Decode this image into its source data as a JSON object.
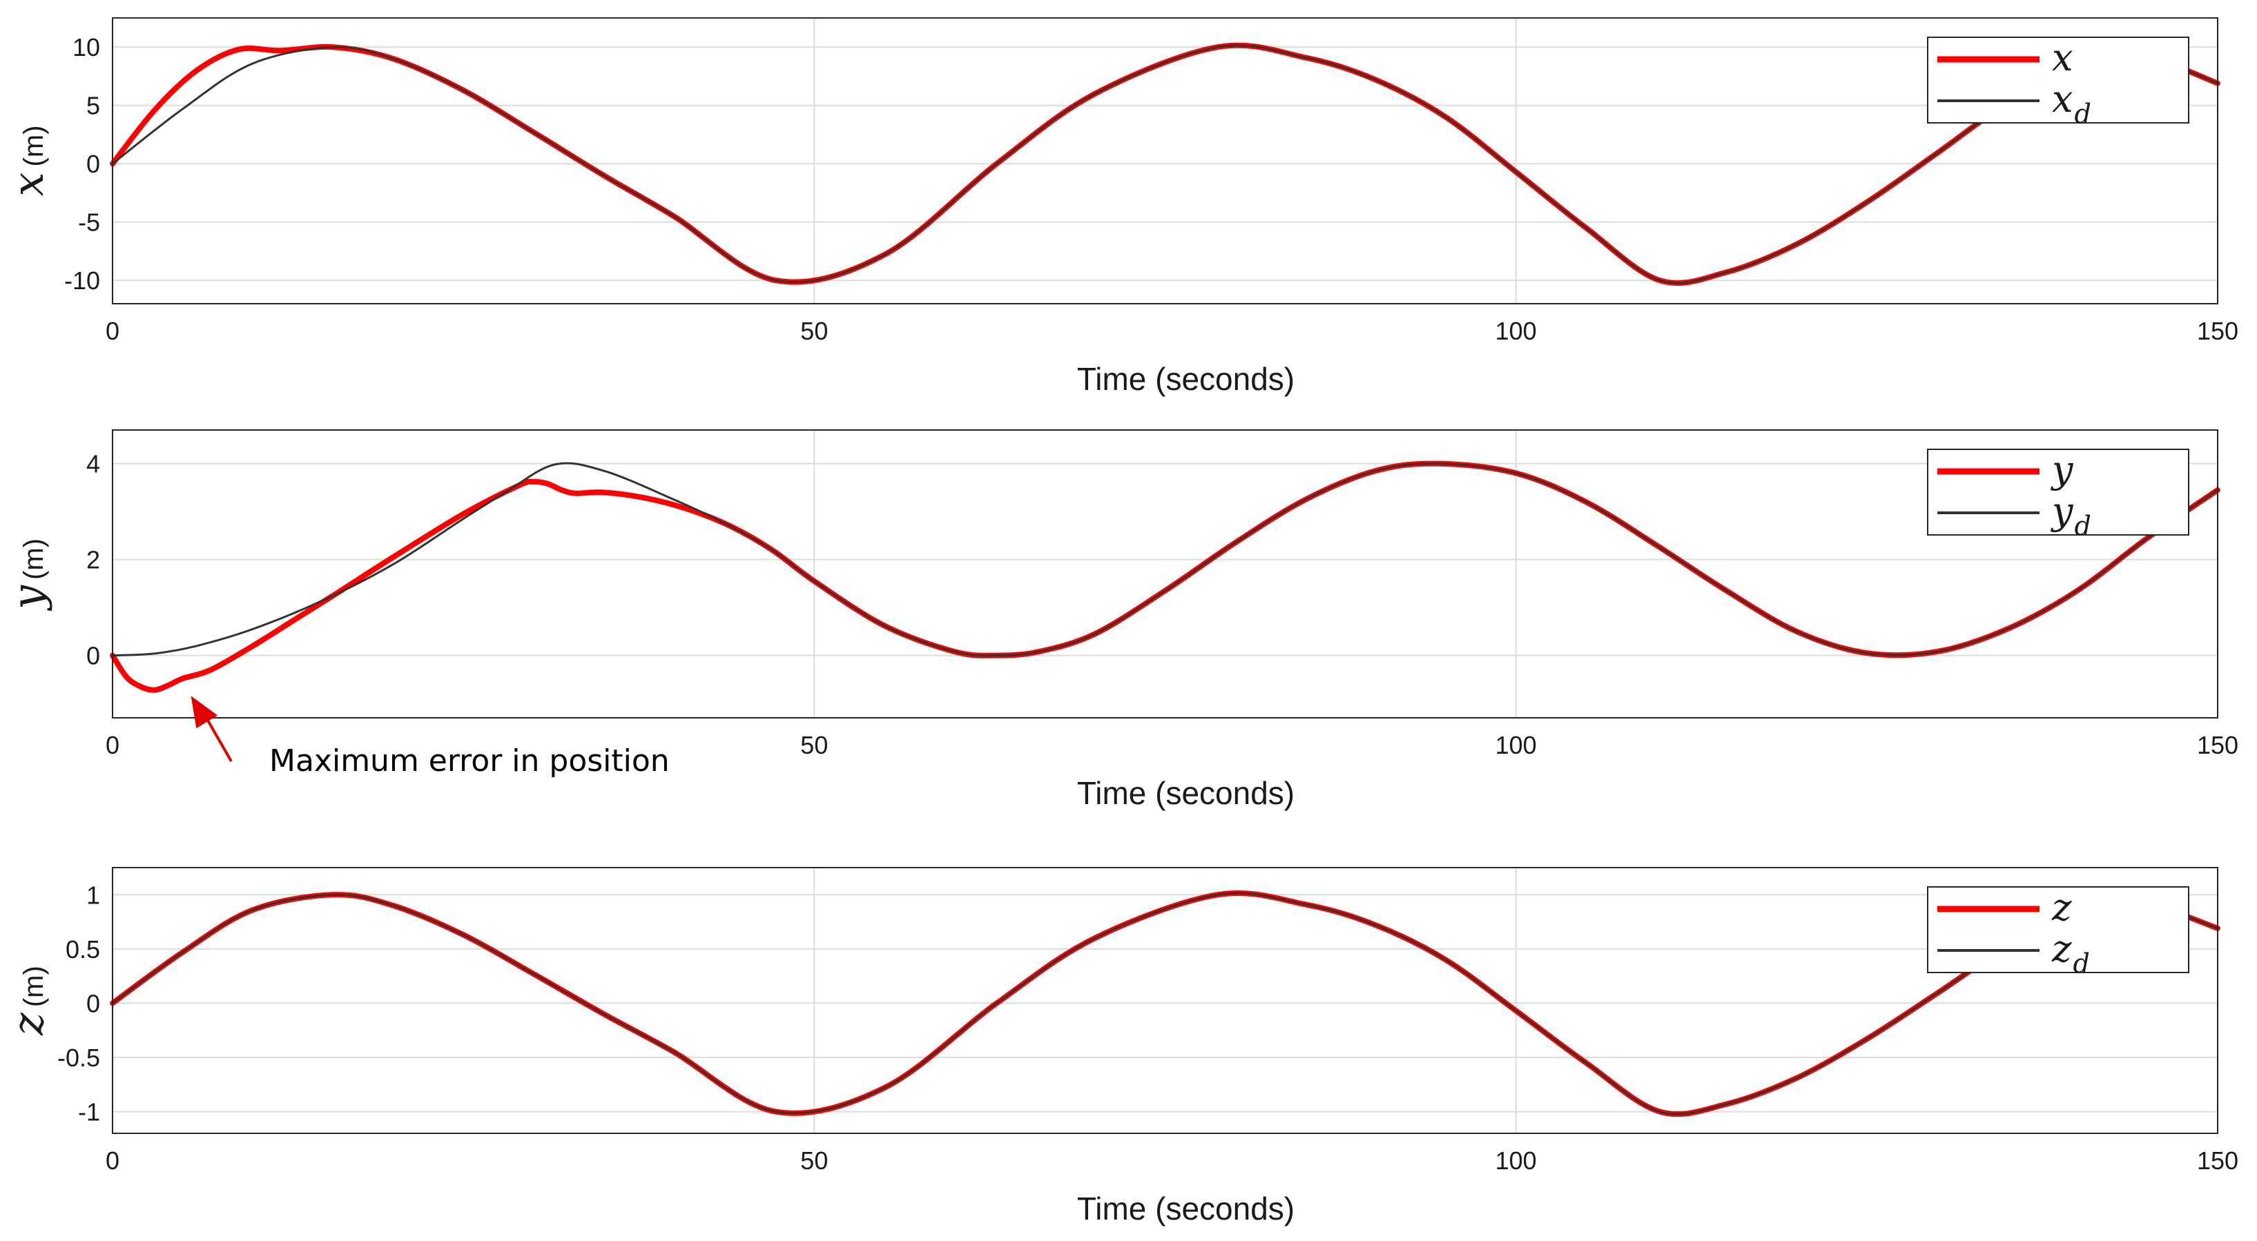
{
  "chart_data": [
    {
      "type": "line",
      "id": "x",
      "ylabel_symbol": "x",
      "ylabel_unit": "(m)",
      "xlabel": "Time (seconds)",
      "xlim": [
        0,
        150
      ],
      "ylim": [
        -12,
        12.5
      ],
      "xticks": [
        0,
        50,
        100,
        150
      ],
      "yticks": [
        -10,
        -5,
        0,
        5,
        10
      ],
      "ytick_labels": [
        "-10",
        "-5",
        "0",
        "5",
        "10"
      ],
      "grid": true,
      "legend_position": "top-right",
      "series": [
        {
          "name": "x",
          "subscript": "",
          "color": "#ff0000",
          "amplitude": 10,
          "offset": 0,
          "period": 63,
          "shape": "sine",
          "x": [
            0,
            3,
            6,
            9,
            12,
            15.75,
            20,
            25,
            30,
            35,
            40,
            47.25,
            55,
            63,
            70,
            78.75,
            85,
            90,
            95,
            100,
            105,
            110.25,
            115,
            120,
            125,
            130,
            135,
            141.75,
            146,
            150
          ],
          "y": [
            0,
            4.6,
            8.0,
            9.8,
            9.7,
            10,
            9.0,
            6.3,
            2.7,
            -1.0,
            -4.5,
            -10,
            -7.8,
            0,
            6.0,
            10,
            9.1,
            7.2,
            4.0,
            -0.7,
            -5.5,
            -10,
            -9.3,
            -6.9,
            -3.3,
            0.9,
            5.2,
            10,
            8.8,
            6.9
          ]
        },
        {
          "name": "x",
          "subscript": "d",
          "color": "#333333",
          "amplitude": 10,
          "offset": 0,
          "period": 63,
          "shape": "sine",
          "x": [
            0,
            5,
            10,
            15.75,
            20,
            25,
            30,
            35,
            40,
            47.25,
            55,
            63,
            70,
            78.75,
            85,
            90,
            95,
            100,
            105,
            110.25,
            115,
            120,
            125,
            130,
            135,
            141.75,
            146,
            150
          ],
          "y": [
            0,
            4.7,
            8.6,
            10,
            9.0,
            6.3,
            2.7,
            -1.0,
            -4.5,
            -10,
            -7.8,
            0,
            6.0,
            10,
            9.1,
            7.2,
            4.0,
            -0.7,
            -5.5,
            -10,
            -9.3,
            -6.9,
            -3.3,
            0.9,
            5.2,
            10,
            8.8,
            6.9
          ]
        }
      ]
    },
    {
      "type": "line",
      "id": "y",
      "ylabel_symbol": "y",
      "ylabel_unit": "(m)",
      "xlabel": "Time (seconds)",
      "xlim": [
        0,
        150
      ],
      "ylim": [
        -1.3,
        4.7
      ],
      "xticks": [
        0,
        50,
        100,
        150
      ],
      "yticks": [
        0,
        2,
        4
      ],
      "ytick_labels": [
        "0",
        "2",
        "4"
      ],
      "grid": true,
      "legend_position": "top-right",
      "annotation": {
        "text": "Maximum error in position",
        "point": [
          5,
          -0.7
        ]
      },
      "series": [
        {
          "name": "y",
          "subscript": "",
          "color": "#ff0000",
          "x": [
            0,
            1,
            2,
            3,
            4,
            5,
            7,
            10,
            13,
            16,
            20,
            25,
            29,
            30,
            31,
            32,
            33,
            35,
            38,
            41,
            44,
            47,
            50,
            55,
            60,
            63,
            66,
            70,
            75,
            80,
            85,
            90,
            94.5,
            100,
            105,
            110,
            115,
            120,
            125,
            130,
            135,
            140,
            145,
            150
          ],
          "y": [
            0,
            -0.45,
            -0.65,
            -0.72,
            -0.62,
            -0.48,
            -0.3,
            0.2,
            0.75,
            1.3,
            2.05,
            2.95,
            3.55,
            3.62,
            3.58,
            3.45,
            3.38,
            3.4,
            3.28,
            3.05,
            2.7,
            2.2,
            1.55,
            0.62,
            0.08,
            0,
            0.08,
            0.45,
            1.35,
            2.35,
            3.25,
            3.85,
            4,
            3.8,
            3.2,
            2.3,
            1.35,
            0.5,
            0.05,
            0.08,
            0.55,
            1.35,
            2.45,
            3.45
          ]
        },
        {
          "name": "y",
          "subscript": "d",
          "color": "#333333",
          "x": [
            0,
            3,
            6,
            10,
            15,
            20,
            25,
            28,
            31.5,
            35,
            40,
            44,
            47,
            50,
            55,
            60,
            63,
            66,
            70,
            75,
            80,
            85,
            90,
            94.5,
            100,
            105,
            110,
            115,
            120,
            125,
            130,
            135,
            140,
            145,
            150
          ],
          "y": [
            0,
            0.04,
            0.2,
            0.55,
            1.15,
            1.9,
            2.85,
            3.4,
            3.98,
            3.85,
            3.25,
            2.7,
            2.2,
            1.55,
            0.62,
            0.08,
            0,
            0.08,
            0.45,
            1.35,
            2.35,
            3.25,
            3.85,
            4,
            3.8,
            3.2,
            2.3,
            1.35,
            0.5,
            0.05,
            0.08,
            0.55,
            1.35,
            2.45,
            3.45
          ]
        }
      ]
    },
    {
      "type": "line",
      "id": "z",
      "ylabel_symbol": "z",
      "ylabel_unit": "(m)",
      "xlabel": "Time (seconds)",
      "xlim": [
        0,
        150
      ],
      "ylim": [
        -1.2,
        1.25
      ],
      "xticks": [
        0,
        50,
        100,
        150
      ],
      "yticks": [
        -1,
        -0.5,
        0,
        0.5,
        1
      ],
      "ytick_labels": [
        "-1",
        "-0.5",
        "0",
        "0.5",
        "1"
      ],
      "grid": true,
      "legend_position": "top-right",
      "series": [
        {
          "name": "z",
          "subscript": "",
          "color": "#ff0000",
          "x": [
            0,
            5,
            10,
            15.75,
            20,
            25,
            30,
            35,
            40,
            47.25,
            55,
            63,
            70,
            78.75,
            85,
            90,
            95,
            100,
            105,
            110.25,
            115,
            120,
            125,
            130,
            135,
            141.75,
            146,
            150
          ],
          "y": [
            0,
            0.47,
            0.86,
            1,
            0.9,
            0.63,
            0.27,
            -0.1,
            -0.45,
            -1,
            -0.78,
            0,
            0.6,
            1,
            0.91,
            0.72,
            0.4,
            -0.07,
            -0.55,
            -1,
            -0.93,
            -0.69,
            -0.33,
            0.09,
            0.52,
            1,
            0.88,
            0.69
          ]
        },
        {
          "name": "z",
          "subscript": "d",
          "color": "#333333",
          "x": [
            0,
            5,
            10,
            15.75,
            20,
            25,
            30,
            35,
            40,
            47.25,
            55,
            63,
            70,
            78.75,
            85,
            90,
            95,
            100,
            105,
            110.25,
            115,
            120,
            125,
            130,
            135,
            141.75,
            146,
            150
          ],
          "y": [
            0,
            0.47,
            0.86,
            1,
            0.9,
            0.63,
            0.27,
            -0.1,
            -0.45,
            -1,
            -0.78,
            0,
            0.6,
            1,
            0.91,
            0.72,
            0.4,
            -0.07,
            -0.55,
            -1,
            -0.93,
            -0.69,
            -0.33,
            0.09,
            0.52,
            1,
            0.88,
            0.69
          ]
        }
      ]
    }
  ]
}
